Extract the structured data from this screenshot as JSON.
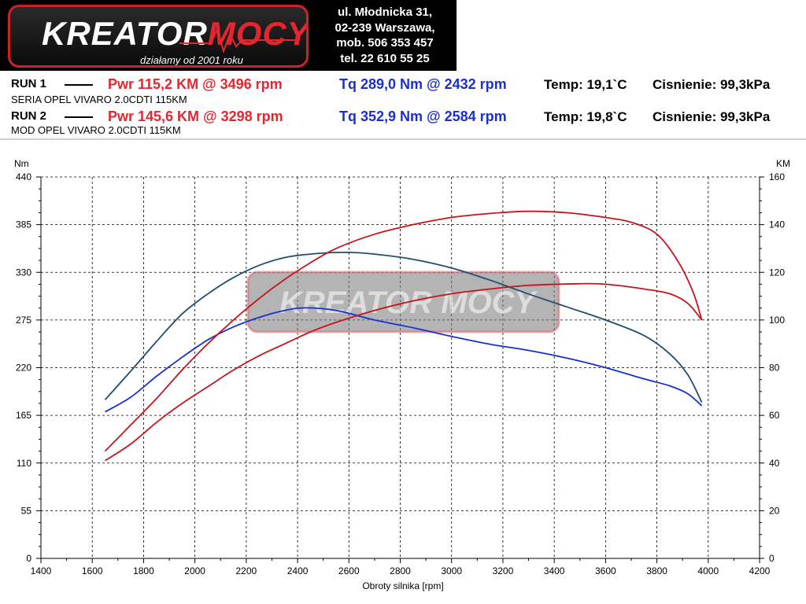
{
  "header": {
    "logo_word1": "KREATOR",
    "logo_word2": "MOCY",
    "tagline": "działamy od 2001 roku",
    "contact": [
      "ul. Młodnicka 31,",
      "02-239  Warszawa,",
      "mob.  506 353 457",
      "tel.  22 610 55 25"
    ]
  },
  "runs": [
    {
      "label": "RUN 1",
      "pwr": "Pwr  115,2 KM @ 3496 rpm",
      "tq": "Tq 289,0 Nm @ 2432 rpm",
      "temp": "Temp: 19,1`C",
      "pressure": "Cisnienie: 99,3kPa",
      "description": "SERIA OPEL VIVARO 2.0CDTI 115KM"
    },
    {
      "label": "RUN 2",
      "pwr": "Pwr  145,6 KM @ 3298 rpm",
      "tq": "Tq 352,9 Nm @ 2584 rpm",
      "temp": "Temp: 19,8`C",
      "pressure": "Cisnienie: 99,3kPa",
      "description": "MOD OPEL VIVARO 2.0CDTI 115KM"
    }
  ],
  "colors": {
    "stock_power": "#c4161c",
    "mod_power": "#c4161c",
    "stock_torque": "#1a2fd0",
    "mod_torque": "#1f4e6e",
    "grid": "#000000"
  },
  "chart_data": {
    "type": "line",
    "xlabel": "Obroty silnika [rpm]",
    "ylabel_left": "Nm",
    "ylabel_right": "KM",
    "xlim": [
      1400,
      4200
    ],
    "ylim_left": [
      0,
      440
    ],
    "ylim_right": [
      0,
      160
    ],
    "x_ticks": [
      1400,
      1600,
      1800,
      2000,
      2200,
      2400,
      2600,
      2800,
      3000,
      3200,
      3400,
      3600,
      3800,
      4000,
      4200
    ],
    "y_ticks_left": [
      0,
      55,
      110,
      165,
      220,
      275,
      330,
      385,
      440
    ],
    "y_ticks_right": [
      0,
      20,
      40,
      60,
      80,
      100,
      120,
      140,
      160
    ],
    "grid": true,
    "watermark": "KREATOR MOCY",
    "series": [
      {
        "name": "Tq 289,0 Nm @ 2432 rpm",
        "axis": "left",
        "color_key": "stock_torque",
        "x": [
          1650,
          1750,
          1850,
          1950,
          2050,
          2150,
          2250,
          2350,
          2432,
          2550,
          2700,
          2850,
          3000,
          3150,
          3300,
          3450,
          3600,
          3750,
          3850,
          3920,
          3975
        ],
        "y": [
          169,
          186,
          210,
          232,
          252,
          267,
          278,
          286,
          289,
          286,
          275,
          266,
          256,
          247,
          240,
          231,
          220,
          207,
          199,
          190,
          176
        ]
      },
      {
        "name": "Tq 352,9 Nm @ 2584 rpm",
        "axis": "left",
        "color_key": "mod_torque",
        "x": [
          1650,
          1750,
          1850,
          1950,
          2050,
          2150,
          2250,
          2350,
          2450,
          2584,
          2700,
          2850,
          3000,
          3150,
          3300,
          3450,
          3600,
          3750,
          3850,
          3920,
          3975
        ],
        "y": [
          183,
          216,
          250,
          282,
          305,
          324,
          338,
          347,
          351,
          353,
          351,
          345,
          335,
          321,
          305,
          290,
          275,
          257,
          236,
          212,
          180
        ]
      },
      {
        "name": "Pwr  115,2 KM @ 3496 rpm",
        "axis": "right",
        "color_key": "stock_power",
        "x": [
          1650,
          1750,
          1850,
          1950,
          2050,
          2150,
          2250,
          2350,
          2450,
          2550,
          2700,
          2850,
          3000,
          3150,
          3300,
          3496,
          3600,
          3750,
          3850,
          3920,
          3975
        ],
        "y": [
          41,
          48,
          57,
          65,
          72,
          79,
          85,
          90,
          95,
          99,
          104,
          108,
          111,
          113,
          114.5,
          115.2,
          115,
          113,
          111,
          107,
          100
        ]
      },
      {
        "name": "Pwr  145,6 KM @ 3298 rpm",
        "axis": "right",
        "color_key": "mod_power",
        "x": [
          1650,
          1750,
          1850,
          1950,
          2050,
          2150,
          2250,
          2350,
          2450,
          2550,
          2700,
          2850,
          3000,
          3150,
          3298,
          3450,
          3600,
          3700,
          3800,
          3880,
          3940,
          3975
        ],
        "y": [
          45,
          56,
          67,
          79,
          90,
          100,
          109,
          117,
          124,
          130,
          136,
          140,
          143,
          144.7,
          145.6,
          145,
          143,
          141,
          136,
          125,
          112,
          100
        ]
      }
    ]
  }
}
